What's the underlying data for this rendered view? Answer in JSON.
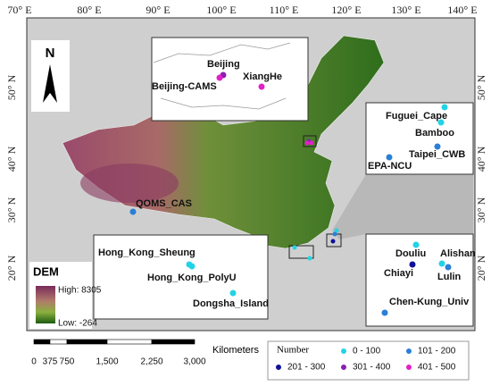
{
  "map": {
    "longitude_labels": [
      "70° E",
      "80° E",
      "90° E",
      "100° E",
      "110° E",
      "120° E",
      "130° E",
      "140° E"
    ],
    "latitude_labels": [
      "50° N",
      "40° N",
      "30° N",
      "20° N"
    ],
    "north": "N",
    "stations": [
      {
        "name": "Beijing",
        "number": "301 - 400"
      },
      {
        "name": "Beijing-CAMS",
        "number": "401 - 500"
      },
      {
        "name": "XiangHe",
        "number": "401 - 500"
      },
      {
        "name": "Fuguei_Cape",
        "number": "0 - 100"
      },
      {
        "name": "Bamboo",
        "number": "0 - 100"
      },
      {
        "name": "Taipei_CWB",
        "number": "101 - 200"
      },
      {
        "name": "EPA-NCU",
        "number": "101 - 200"
      },
      {
        "name": "QOMS_CAS",
        "number": "101 - 200"
      },
      {
        "name": "Hong_Kong_Sheung",
        "number": "0 - 100"
      },
      {
        "name": "Hong_Kong_PolyU",
        "number": "0 - 100"
      },
      {
        "name": "Dongsha_Island",
        "number": "0 - 100"
      },
      {
        "name": "Douliu",
        "number": "0 - 100"
      },
      {
        "name": "Alishan",
        "number": "0 - 100"
      },
      {
        "name": "Chiayi",
        "number": "201 - 300"
      },
      {
        "name": "Lulin",
        "number": "101 - 200"
      },
      {
        "name": "Chen-Kung_Univ",
        "number": "101 - 200"
      }
    ],
    "dem_legend": {
      "title": "DEM",
      "high": "High: 8305",
      "low": "Low: -264"
    },
    "scale_bar": {
      "ticks": [
        "0",
        "375",
        "750",
        "1,500",
        "2,250",
        "3,000"
      ],
      "unit": "Kilometers"
    },
    "number_legend": {
      "title": "Number",
      "classes": [
        {
          "label": "0 - 100",
          "color": "#22d3e6"
        },
        {
          "label": "101 - 200",
          "color": "#2a7fd6"
        },
        {
          "label": "201 - 300",
          "color": "#10109a"
        },
        {
          "label": "301 - 400",
          "color": "#8a1fb0"
        },
        {
          "label": "401 - 500",
          "color": "#e020c8"
        }
      ]
    }
  }
}
